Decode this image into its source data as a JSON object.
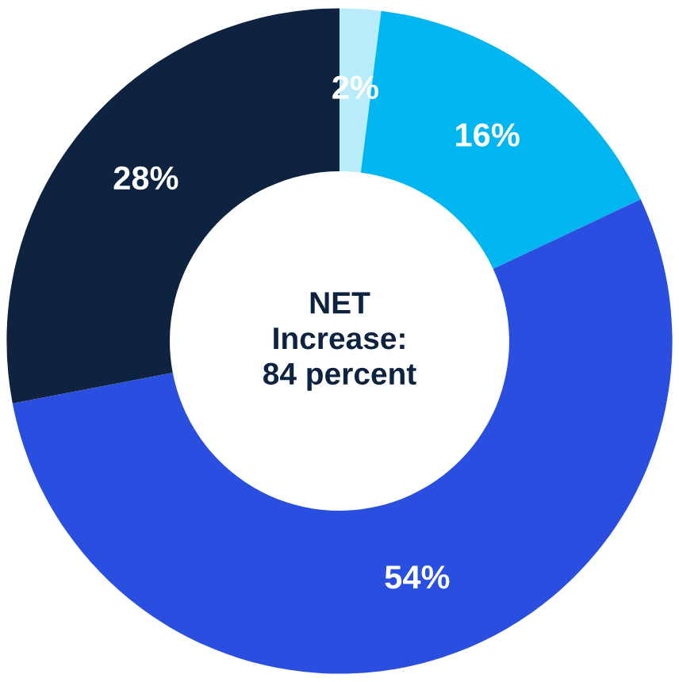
{
  "chart_data": {
    "type": "donut",
    "categories": [
      null,
      null,
      null,
      null
    ],
    "values": [
      2,
      16,
      54,
      28
    ],
    "colors": [
      "#b8ecfb",
      "#00b6f0",
      "#2a4fe0",
      "#0e2340"
    ],
    "value_labels": [
      "2%",
      "16%",
      "54%",
      "28%"
    ],
    "annotations": [
      "NET\nIncrease:\n84 percent"
    ]
  }
}
